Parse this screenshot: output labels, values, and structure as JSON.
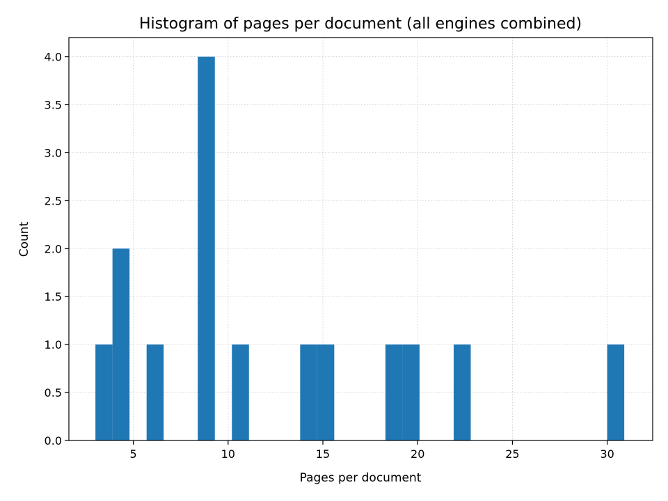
{
  "chart_data": {
    "type": "bar",
    "title": "Histogram of pages per document (all engines combined)",
    "xlabel": "Pages per document",
    "ylabel": "Count",
    "xlim": [
      1.6,
      32.4
    ],
    "ylim": [
      0,
      4.2
    ],
    "xticks": [
      5,
      10,
      15,
      20,
      25,
      30
    ],
    "yticks": [
      0.0,
      0.5,
      1.0,
      1.5,
      2.0,
      2.5,
      3.0,
      3.5,
      4.0
    ],
    "bin_width": 0.9,
    "bins": [
      {
        "start": 3.0,
        "end": 3.9,
        "count": 1
      },
      {
        "start": 3.9,
        "end": 4.8,
        "count": 2
      },
      {
        "start": 5.7,
        "end": 6.6,
        "count": 1
      },
      {
        "start": 8.4,
        "end": 9.3,
        "count": 4
      },
      {
        "start": 10.2,
        "end": 11.1,
        "count": 1
      },
      {
        "start": 13.8,
        "end": 14.7,
        "count": 1
      },
      {
        "start": 14.7,
        "end": 15.6,
        "count": 1
      },
      {
        "start": 18.3,
        "end": 19.2,
        "count": 1
      },
      {
        "start": 19.2,
        "end": 20.1,
        "count": 1
      },
      {
        "start": 21.9,
        "end": 22.8,
        "count": 1
      },
      {
        "start": 30.0,
        "end": 30.9,
        "count": 1
      }
    ],
    "bar_color": "#1f77b4",
    "grid": true
  }
}
